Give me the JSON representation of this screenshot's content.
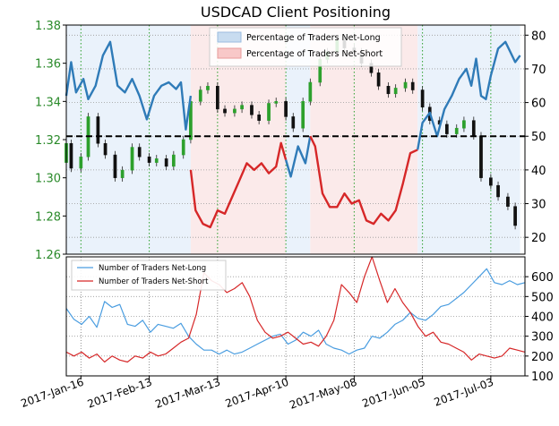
{
  "chart_data": [
    {
      "type": "line",
      "title": "USDCAD Client Positioning",
      "x_ticks": [
        "2017-Jan-16",
        "2017-Feb-13",
        "2017-Mar-13",
        "2017-Apr-10",
        "2017-May-08",
        "2017-Jun-05",
        "2017-Jul-03"
      ],
      "x_range": [
        "2017-Jan-10",
        "2017-Jul-17"
      ],
      "ylim_left": [
        1.26,
        1.38
      ],
      "yticks_left": [
        "1.26",
        "1.28",
        "1.30",
        "1.32",
        "1.34",
        "1.36",
        "1.38"
      ],
      "ylim_right": [
        15,
        83
      ],
      "yticks_right": [
        "20",
        "30",
        "40",
        "50",
        "60",
        "70",
        "80"
      ],
      "legend": [
        "Percentage of Traders Net-Long",
        "Percentage of Traders Net-Short"
      ],
      "reference_line": 50,
      "grid": true,
      "price_candles": [
        {
          "date": "2017-Jan-10",
          "open": 1.308,
          "close": 1.318
        },
        {
          "date": "2017-Jan-12",
          "open": 1.318,
          "close": 1.305
        },
        {
          "date": "2017-Jan-16",
          "open": 1.305,
          "close": 1.311
        },
        {
          "date": "2017-Jan-19",
          "open": 1.311,
          "close": 1.332
        },
        {
          "date": "2017-Jan-23",
          "open": 1.332,
          "close": 1.318
        },
        {
          "date": "2017-Jan-26",
          "open": 1.318,
          "close": 1.312
        },
        {
          "date": "2017-Jan-30",
          "open": 1.312,
          "close": 1.3
        },
        {
          "date": "2017-Feb-02",
          "open": 1.3,
          "close": 1.304
        },
        {
          "date": "2017-Feb-06",
          "open": 1.304,
          "close": 1.316
        },
        {
          "date": "2017-Feb-09",
          "open": 1.316,
          "close": 1.311
        },
        {
          "date": "2017-Feb-13",
          "open": 1.311,
          "close": 1.308
        },
        {
          "date": "2017-Feb-16",
          "open": 1.308,
          "close": 1.31
        },
        {
          "date": "2017-Feb-20",
          "open": 1.31,
          "close": 1.306
        },
        {
          "date": "2017-Feb-23",
          "open": 1.306,
          "close": 1.312
        },
        {
          "date": "2017-Feb-27",
          "open": 1.312,
          "close": 1.32
        },
        {
          "date": "2017-Mar-02",
          "open": 1.32,
          "close": 1.34
        },
        {
          "date": "2017-Mar-06",
          "open": 1.34,
          "close": 1.346
        },
        {
          "date": "2017-Mar-09",
          "open": 1.346,
          "close": 1.348
        },
        {
          "date": "2017-Mar-13",
          "open": 1.348,
          "close": 1.336
        },
        {
          "date": "2017-Mar-16",
          "open": 1.336,
          "close": 1.334
        },
        {
          "date": "2017-Mar-20",
          "open": 1.334,
          "close": 1.336
        },
        {
          "date": "2017-Mar-23",
          "open": 1.336,
          "close": 1.338
        },
        {
          "date": "2017-Mar-27",
          "open": 1.338,
          "close": 1.333
        },
        {
          "date": "2017-Mar-30",
          "open": 1.333,
          "close": 1.33
        },
        {
          "date": "2017-Apr-03",
          "open": 1.33,
          "close": 1.339
        },
        {
          "date": "2017-Apr-06",
          "open": 1.339,
          "close": 1.34
        },
        {
          "date": "2017-Apr-10",
          "open": 1.34,
          "close": 1.332
        },
        {
          "date": "2017-Apr-13",
          "open": 1.332,
          "close": 1.326
        },
        {
          "date": "2017-Apr-17",
          "open": 1.326,
          "close": 1.34
        },
        {
          "date": "2017-Apr-20",
          "open": 1.34,
          "close": 1.35
        },
        {
          "date": "2017-Apr-24",
          "open": 1.35,
          "close": 1.362
        },
        {
          "date": "2017-Apr-27",
          "open": 1.362,
          "close": 1.366
        },
        {
          "date": "2017-May-01",
          "open": 1.366,
          "close": 1.372
        },
        {
          "date": "2017-May-04",
          "open": 1.372,
          "close": 1.368
        },
        {
          "date": "2017-May-08",
          "open": 1.368,
          "close": 1.366
        },
        {
          "date": "2017-May-11",
          "open": 1.366,
          "close": 1.36
        },
        {
          "date": "2017-May-15",
          "open": 1.36,
          "close": 1.355
        },
        {
          "date": "2017-May-18",
          "open": 1.355,
          "close": 1.348
        },
        {
          "date": "2017-May-22",
          "open": 1.348,
          "close": 1.344
        },
        {
          "date": "2017-May-25",
          "open": 1.344,
          "close": 1.347
        },
        {
          "date": "2017-May-29",
          "open": 1.347,
          "close": 1.35
        },
        {
          "date": "2017-Jun-01",
          "open": 1.35,
          "close": 1.346
        },
        {
          "date": "2017-Jun-05",
          "open": 1.346,
          "close": 1.337
        },
        {
          "date": "2017-Jun-08",
          "open": 1.337,
          "close": 1.33
        },
        {
          "date": "2017-Jun-12",
          "open": 1.33,
          "close": 1.328
        },
        {
          "date": "2017-Jun-15",
          "open": 1.328,
          "close": 1.323
        },
        {
          "date": "2017-Jun-19",
          "open": 1.323,
          "close": 1.326
        },
        {
          "date": "2017-Jun-22",
          "open": 1.326,
          "close": 1.33
        },
        {
          "date": "2017-Jun-26",
          "open": 1.33,
          "close": 1.322
        },
        {
          "date": "2017-Jun-29",
          "open": 1.322,
          "close": 1.3
        },
        {
          "date": "2017-Jul-03",
          "open": 1.3,
          "close": 1.296
        },
        {
          "date": "2017-Jul-06",
          "open": 1.296,
          "close": 1.29
        },
        {
          "date": "2017-Jul-10",
          "open": 1.29,
          "close": 1.285
        },
        {
          "date": "2017-Jul-13",
          "open": 1.285,
          "close": 1.275
        }
      ],
      "series": [
        {
          "name": "Percentage of Traders Net-Long",
          "color": "#2f7bb8",
          "points": [
            [
              "2017-Jan-10",
              62
            ],
            [
              "2017-Jan-12",
              72
            ],
            [
              "2017-Jan-14",
              63
            ],
            [
              "2017-Jan-17",
              67
            ],
            [
              "2017-Jan-19",
              61
            ],
            [
              "2017-Jan-22",
              65
            ],
            [
              "2017-Jan-25",
              74
            ],
            [
              "2017-Jan-28",
              78
            ],
            [
              "2017-Jan-31",
              65
            ],
            [
              "2017-Feb-03",
              63
            ],
            [
              "2017-Feb-06",
              67
            ],
            [
              "2017-Feb-09",
              62
            ],
            [
              "2017-Feb-12",
              55
            ],
            [
              "2017-Feb-15",
              62
            ],
            [
              "2017-Feb-18",
              65
            ],
            [
              "2017-Feb-21",
              66
            ],
            [
              "2017-Feb-24",
              64
            ],
            [
              "2017-Feb-26",
              66
            ],
            [
              "2017-Feb-28",
              52
            ],
            [
              "2017-Mar-02",
              62
            ]
          ]
        },
        {
          "name": "Percentage of Traders Net-Short",
          "color": "#d62728",
          "points": [
            [
              "2017-Mar-02",
              40
            ],
            [
              "2017-Mar-04",
              28
            ],
            [
              "2017-Mar-07",
              24
            ],
            [
              "2017-Mar-10",
              23
            ],
            [
              "2017-Mar-13",
              28
            ],
            [
              "2017-Mar-16",
              27
            ],
            [
              "2017-Mar-19",
              32
            ],
            [
              "2017-Mar-22",
              37
            ],
            [
              "2017-Mar-25",
              42
            ],
            [
              "2017-Mar-28",
              40
            ],
            [
              "2017-Mar-31",
              42
            ],
            [
              "2017-Apr-03",
              39
            ],
            [
              "2017-Apr-06",
              41
            ],
            [
              "2017-Apr-08",
              48
            ],
            [
              "2017-Apr-10",
              43
            ]
          ]
        },
        {
          "name": "Percentage of Traders Net-Long",
          "color": "#2f7bb8",
          "points": [
            [
              "2017-Apr-10",
              43
            ],
            [
              "2017-Apr-12",
              38
            ],
            [
              "2017-Apr-15",
              47
            ],
            [
              "2017-Apr-18",
              42
            ],
            [
              "2017-Apr-20",
              50
            ]
          ]
        },
        {
          "name": "Percentage of Traders Net-Short",
          "color": "#d62728",
          "points": [
            [
              "2017-Apr-20",
              50
            ],
            [
              "2017-Apr-22",
              47
            ],
            [
              "2017-Apr-25",
              33
            ],
            [
              "2017-Apr-28",
              29
            ],
            [
              "2017-May-01",
              29
            ],
            [
              "2017-May-04",
              33
            ],
            [
              "2017-May-07",
              30
            ],
            [
              "2017-May-10",
              31
            ],
            [
              "2017-May-13",
              25
            ],
            [
              "2017-May-16",
              24
            ],
            [
              "2017-May-19",
              27
            ],
            [
              "2017-May-22",
              25
            ],
            [
              "2017-May-25",
              28
            ],
            [
              "2017-May-28",
              36
            ],
            [
              "2017-May-31",
              45
            ],
            [
              "2017-Jun-03",
              46
            ]
          ]
        },
        {
          "name": "Percentage of Traders Net-Long",
          "color": "#2f7bb8",
          "points": [
            [
              "2017-Jun-03",
              46
            ],
            [
              "2017-Jun-05",
              54
            ],
            [
              "2017-Jun-08",
              57
            ],
            [
              "2017-Jun-11",
              50
            ],
            [
              "2017-Jun-14",
              58
            ],
            [
              "2017-Jun-17",
              62
            ],
            [
              "2017-Jun-20",
              67
            ],
            [
              "2017-Jun-23",
              70
            ],
            [
              "2017-Jun-25",
              65
            ],
            [
              "2017-Jun-27",
              73
            ],
            [
              "2017-Jun-29",
              62
            ],
            [
              "2017-Jul-01",
              61
            ],
            [
              "2017-Jul-03",
              68
            ],
            [
              "2017-Jul-06",
              76
            ],
            [
              "2017-Jul-09",
              78
            ],
            [
              "2017-Jul-11",
              75
            ],
            [
              "2017-Jul-13",
              72
            ],
            [
              "2017-Jul-15",
              74
            ]
          ]
        }
      ]
    },
    {
      "type": "line",
      "ylim": [
        100,
        700
      ],
      "yticks": [
        "100",
        "200",
        "300",
        "400",
        "500",
        "600"
      ],
      "legend_placement": "top-left",
      "grid": true,
      "series": [
        {
          "name": "Number of Traders Net-Long",
          "color": "#4a9de0",
          "values": [
            440,
            385,
            360,
            400,
            345,
            475,
            445,
            460,
            360,
            350,
            380,
            320,
            360,
            350,
            340,
            365,
            300,
            260,
            230,
            230,
            210,
            230,
            210,
            220,
            240,
            260,
            280,
            300,
            310,
            260,
            280,
            320,
            300,
            330,
            260,
            240,
            230,
            210,
            230,
            240,
            300,
            290,
            320,
            360,
            380,
            420,
            390,
            380,
            410,
            450,
            460,
            490,
            520,
            560,
            600,
            640,
            570,
            560,
            580,
            560,
            570
          ]
        },
        {
          "name": "Number of Traders Net-Short",
          "color": "#d62728",
          "values": [
            220,
            200,
            220,
            190,
            210,
            170,
            200,
            180,
            170,
            200,
            190,
            220,
            200,
            210,
            240,
            270,
            290,
            410,
            620,
            580,
            560,
            520,
            540,
            570,
            500,
            380,
            320,
            290,
            300,
            320,
            290,
            260,
            270,
            250,
            300,
            380,
            560,
            520,
            470,
            600,
            700,
            580,
            470,
            540,
            470,
            420,
            350,
            300,
            320,
            270,
            260,
            240,
            220,
            180,
            210,
            200,
            190,
            200,
            240,
            230,
            220
          ]
        }
      ]
    }
  ]
}
